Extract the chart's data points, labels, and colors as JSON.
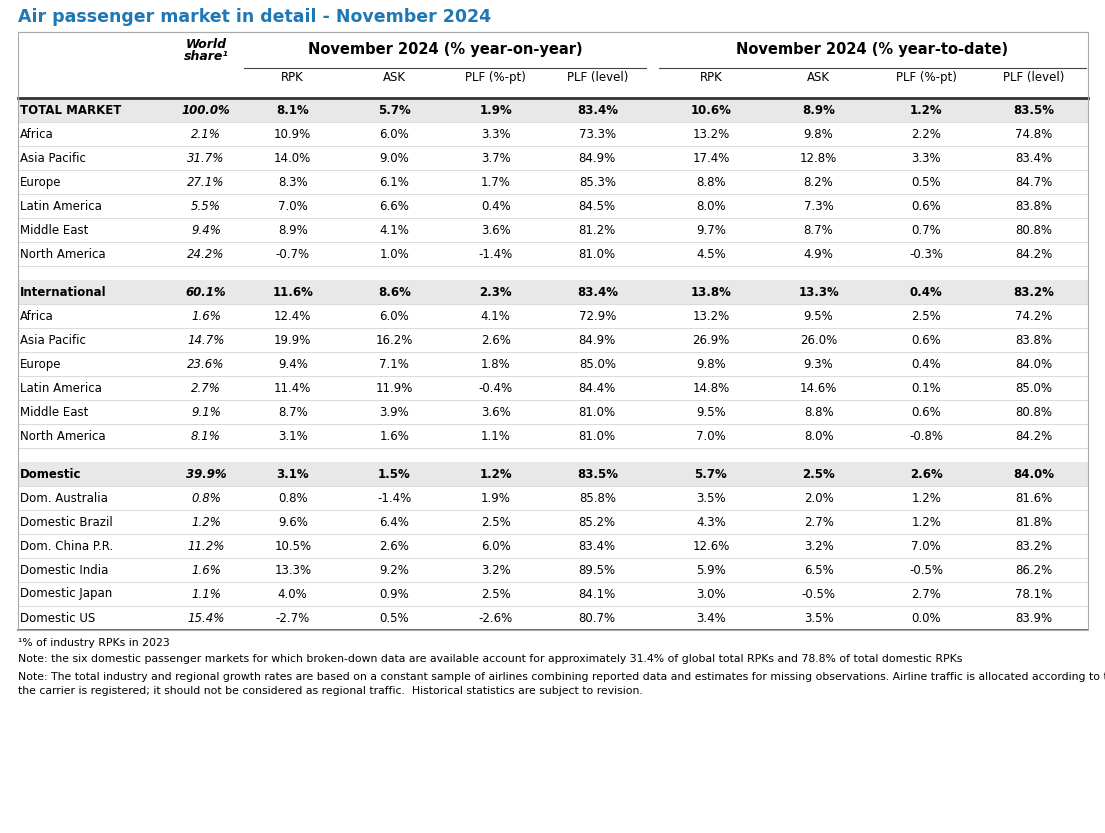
{
  "title": "Air passenger market in detail - November 2024",
  "title_color": "#1F77B4",
  "sub_headers": [
    "RPK",
    "ASK",
    "PLF (%-pt)",
    "PLF (level)",
    "RPK",
    "ASK",
    "PLF (%-pt)",
    "PLF (level)"
  ],
  "rows": [
    {
      "label": "TOTAL MARKET",
      "world_share": "100.0%",
      "bold": true,
      "italic_share": true,
      "bg": "#E8E8E8",
      "yoy_rpk": "8.1%",
      "yoy_ask": "5.7%",
      "yoy_plf_pt": "1.9%",
      "yoy_plf_lvl": "83.4%",
      "ytd_rpk": "10.6%",
      "ytd_ask": "8.9%",
      "ytd_plf_pt": "1.2%",
      "ytd_plf_lvl": "83.5%"
    },
    {
      "label": "Africa",
      "world_share": "2.1%",
      "bold": false,
      "italic_share": true,
      "bg": "#FFFFFF",
      "yoy_rpk": "10.9%",
      "yoy_ask": "6.0%",
      "yoy_plf_pt": "3.3%",
      "yoy_plf_lvl": "73.3%",
      "ytd_rpk": "13.2%",
      "ytd_ask": "9.8%",
      "ytd_plf_pt": "2.2%",
      "ytd_plf_lvl": "74.8%"
    },
    {
      "label": "Asia Pacific",
      "world_share": "31.7%",
      "bold": false,
      "italic_share": true,
      "bg": "#FFFFFF",
      "yoy_rpk": "14.0%",
      "yoy_ask": "9.0%",
      "yoy_plf_pt": "3.7%",
      "yoy_plf_lvl": "84.9%",
      "ytd_rpk": "17.4%",
      "ytd_ask": "12.8%",
      "ytd_plf_pt": "3.3%",
      "ytd_plf_lvl": "83.4%"
    },
    {
      "label": "Europe",
      "world_share": "27.1%",
      "bold": false,
      "italic_share": true,
      "bg": "#FFFFFF",
      "yoy_rpk": "8.3%",
      "yoy_ask": "6.1%",
      "yoy_plf_pt": "1.7%",
      "yoy_plf_lvl": "85.3%",
      "ytd_rpk": "8.8%",
      "ytd_ask": "8.2%",
      "ytd_plf_pt": "0.5%",
      "ytd_plf_lvl": "84.7%"
    },
    {
      "label": "Latin America",
      "world_share": "5.5%",
      "bold": false,
      "italic_share": true,
      "bg": "#FFFFFF",
      "yoy_rpk": "7.0%",
      "yoy_ask": "6.6%",
      "yoy_plf_pt": "0.4%",
      "yoy_plf_lvl": "84.5%",
      "ytd_rpk": "8.0%",
      "ytd_ask": "7.3%",
      "ytd_plf_pt": "0.6%",
      "ytd_plf_lvl": "83.8%"
    },
    {
      "label": "Middle East",
      "world_share": "9.4%",
      "bold": false,
      "italic_share": true,
      "bg": "#FFFFFF",
      "yoy_rpk": "8.9%",
      "yoy_ask": "4.1%",
      "yoy_plf_pt": "3.6%",
      "yoy_plf_lvl": "81.2%",
      "ytd_rpk": "9.7%",
      "ytd_ask": "8.7%",
      "ytd_plf_pt": "0.7%",
      "ytd_plf_lvl": "80.8%"
    },
    {
      "label": "North America",
      "world_share": "24.2%",
      "bold": false,
      "italic_share": true,
      "bg": "#FFFFFF",
      "yoy_rpk": "-0.7%",
      "yoy_ask": "1.0%",
      "yoy_plf_pt": "-1.4%",
      "yoy_plf_lvl": "81.0%",
      "ytd_rpk": "4.5%",
      "ytd_ask": "4.9%",
      "ytd_plf_pt": "-0.3%",
      "ytd_plf_lvl": "84.2%"
    },
    {
      "spacer": true
    },
    {
      "label": "International",
      "world_share": "60.1%",
      "bold": true,
      "italic_share": true,
      "bg": "#E8E8E8",
      "yoy_rpk": "11.6%",
      "yoy_ask": "8.6%",
      "yoy_plf_pt": "2.3%",
      "yoy_plf_lvl": "83.4%",
      "ytd_rpk": "13.8%",
      "ytd_ask": "13.3%",
      "ytd_plf_pt": "0.4%",
      "ytd_plf_lvl": "83.2%"
    },
    {
      "label": "Africa",
      "world_share": "1.6%",
      "bold": false,
      "italic_share": true,
      "bg": "#FFFFFF",
      "yoy_rpk": "12.4%",
      "yoy_ask": "6.0%",
      "yoy_plf_pt": "4.1%",
      "yoy_plf_lvl": "72.9%",
      "ytd_rpk": "13.2%",
      "ytd_ask": "9.5%",
      "ytd_plf_pt": "2.5%",
      "ytd_plf_lvl": "74.2%"
    },
    {
      "label": "Asia Pacific",
      "world_share": "14.7%",
      "bold": false,
      "italic_share": true,
      "bg": "#FFFFFF",
      "yoy_rpk": "19.9%",
      "yoy_ask": "16.2%",
      "yoy_plf_pt": "2.6%",
      "yoy_plf_lvl": "84.9%",
      "ytd_rpk": "26.9%",
      "ytd_ask": "26.0%",
      "ytd_plf_pt": "0.6%",
      "ytd_plf_lvl": "83.8%"
    },
    {
      "label": "Europe",
      "world_share": "23.6%",
      "bold": false,
      "italic_share": true,
      "bg": "#FFFFFF",
      "yoy_rpk": "9.4%",
      "yoy_ask": "7.1%",
      "yoy_plf_pt": "1.8%",
      "yoy_plf_lvl": "85.0%",
      "ytd_rpk": "9.8%",
      "ytd_ask": "9.3%",
      "ytd_plf_pt": "0.4%",
      "ytd_plf_lvl": "84.0%"
    },
    {
      "label": "Latin America",
      "world_share": "2.7%",
      "bold": false,
      "italic_share": true,
      "bg": "#FFFFFF",
      "yoy_rpk": "11.4%",
      "yoy_ask": "11.9%",
      "yoy_plf_pt": "-0.4%",
      "yoy_plf_lvl": "84.4%",
      "ytd_rpk": "14.8%",
      "ytd_ask": "14.6%",
      "ytd_plf_pt": "0.1%",
      "ytd_plf_lvl": "85.0%"
    },
    {
      "label": "Middle East",
      "world_share": "9.1%",
      "bold": false,
      "italic_share": true,
      "bg": "#FFFFFF",
      "yoy_rpk": "8.7%",
      "yoy_ask": "3.9%",
      "yoy_plf_pt": "3.6%",
      "yoy_plf_lvl": "81.0%",
      "ytd_rpk": "9.5%",
      "ytd_ask": "8.8%",
      "ytd_plf_pt": "0.6%",
      "ytd_plf_lvl": "80.8%"
    },
    {
      "label": "North America",
      "world_share": "8.1%",
      "bold": false,
      "italic_share": true,
      "bg": "#FFFFFF",
      "yoy_rpk": "3.1%",
      "yoy_ask": "1.6%",
      "yoy_plf_pt": "1.1%",
      "yoy_plf_lvl": "81.0%",
      "ytd_rpk": "7.0%",
      "ytd_ask": "8.0%",
      "ytd_plf_pt": "-0.8%",
      "ytd_plf_lvl": "84.2%"
    },
    {
      "spacer": true
    },
    {
      "label": "Domestic",
      "world_share": "39.9%",
      "bold": true,
      "italic_share": true,
      "bg": "#E8E8E8",
      "yoy_rpk": "3.1%",
      "yoy_ask": "1.5%",
      "yoy_plf_pt": "1.2%",
      "yoy_plf_lvl": "83.5%",
      "ytd_rpk": "5.7%",
      "ytd_ask": "2.5%",
      "ytd_plf_pt": "2.6%",
      "ytd_plf_lvl": "84.0%"
    },
    {
      "label": "Dom. Australia",
      "world_share": "0.8%",
      "bold": false,
      "italic_share": true,
      "bg": "#FFFFFF",
      "yoy_rpk": "0.8%",
      "yoy_ask": "-1.4%",
      "yoy_plf_pt": "1.9%",
      "yoy_plf_lvl": "85.8%",
      "ytd_rpk": "3.5%",
      "ytd_ask": "2.0%",
      "ytd_plf_pt": "1.2%",
      "ytd_plf_lvl": "81.6%"
    },
    {
      "label": "Domestic Brazil",
      "world_share": "1.2%",
      "bold": false,
      "italic_share": true,
      "bg": "#FFFFFF",
      "yoy_rpk": "9.6%",
      "yoy_ask": "6.4%",
      "yoy_plf_pt": "2.5%",
      "yoy_plf_lvl": "85.2%",
      "ytd_rpk": "4.3%",
      "ytd_ask": "2.7%",
      "ytd_plf_pt": "1.2%",
      "ytd_plf_lvl": "81.8%"
    },
    {
      "label": "Dom. China P.R.",
      "world_share": "11.2%",
      "bold": false,
      "italic_share": true,
      "bg": "#FFFFFF",
      "yoy_rpk": "10.5%",
      "yoy_ask": "2.6%",
      "yoy_plf_pt": "6.0%",
      "yoy_plf_lvl": "83.4%",
      "ytd_rpk": "12.6%",
      "ytd_ask": "3.2%",
      "ytd_plf_pt": "7.0%",
      "ytd_plf_lvl": "83.2%"
    },
    {
      "label": "Domestic India",
      "world_share": "1.6%",
      "bold": false,
      "italic_share": true,
      "bg": "#FFFFFF",
      "yoy_rpk": "13.3%",
      "yoy_ask": "9.2%",
      "yoy_plf_pt": "3.2%",
      "yoy_plf_lvl": "89.5%",
      "ytd_rpk": "5.9%",
      "ytd_ask": "6.5%",
      "ytd_plf_pt": "-0.5%",
      "ytd_plf_lvl": "86.2%"
    },
    {
      "label": "Domestic Japan",
      "world_share": "1.1%",
      "bold": false,
      "italic_share": true,
      "bg": "#FFFFFF",
      "yoy_rpk": "4.0%",
      "yoy_ask": "0.9%",
      "yoy_plf_pt": "2.5%",
      "yoy_plf_lvl": "84.1%",
      "ytd_rpk": "3.0%",
      "ytd_ask": "-0.5%",
      "ytd_plf_pt": "2.7%",
      "ytd_plf_lvl": "78.1%"
    },
    {
      "label": "Domestic US",
      "world_share": "15.4%",
      "bold": false,
      "italic_share": true,
      "bg": "#FFFFFF",
      "yoy_rpk": "-2.7%",
      "yoy_ask": "0.5%",
      "yoy_plf_pt": "-2.6%",
      "yoy_plf_lvl": "80.7%",
      "ytd_rpk": "3.4%",
      "ytd_ask": "3.5%",
      "ytd_plf_pt": "0.0%",
      "ytd_plf_lvl": "83.9%"
    }
  ],
  "footnote1": "¹% of industry RPKs in 2023",
  "footnote2": "Note: the six domestic passenger markets for which broken-down data are available account for approximately 31.4% of global total RPKs and 78.8% of total domestic RPKs",
  "footnote3a": "Note: The total industry and regional growth rates are based on a constant sample of airlines combining reported data and estimates for missing observations. Airline traffic is allocated according to the region in which",
  "footnote3b": "the carrier is registered; it should not be considered as regional traffic.  Historical statistics are subject to revision."
}
